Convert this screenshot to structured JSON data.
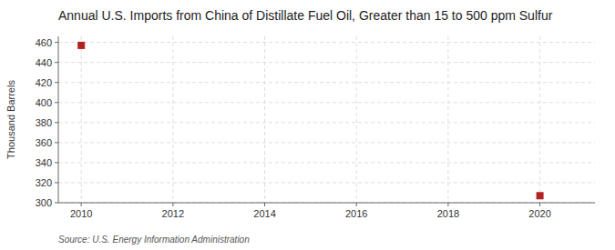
{
  "chart_data": {
    "type": "scatter",
    "title": "Annual U.S. Imports from China of Distillate Fuel Oil, Greater than 15 to 500 ppm Sulfur",
    "ylabel": "Thousand Barrels",
    "source": "Source: U.S. Energy Information Administration",
    "x": [
      2010,
      2020
    ],
    "values": [
      457,
      307
    ],
    "color": "#b22222",
    "marker": "square",
    "xlim": [
      2009.5,
      2021.2
    ],
    "ylim": [
      300,
      466
    ],
    "xticks": [
      2010,
      2012,
      2014,
      2016,
      2018,
      2020
    ],
    "yticks": [
      300,
      320,
      340,
      360,
      380,
      400,
      420,
      440,
      460
    ],
    "grid": true
  }
}
